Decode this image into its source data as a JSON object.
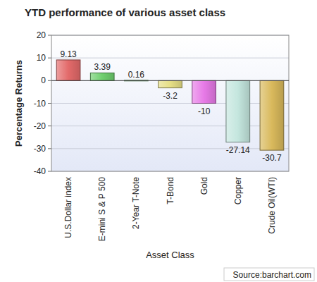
{
  "chart_data": {
    "type": "bar",
    "title": "YTD performance of various asset class",
    "x_label": "Asset Class",
    "y_label": "Percentage Returns",
    "source": "Source:barchart.com",
    "categories": [
      "U.S.Dollar index",
      "E-mini S & P 500",
      "2-Year T-Note",
      "T-Bond",
      "Gold",
      "Copper",
      "Crude Oil(WTI)"
    ],
    "values": [
      9.13,
      3.39,
      0.16,
      -3.2,
      -10,
      -27.14,
      -30.7
    ],
    "colors": [
      "#e36a6a",
      "#6fcf6f",
      "#8fd88f",
      "#e6df86",
      "#e77ae7",
      "#c4e6de",
      "#d9b95c"
    ],
    "ylim": [
      -40,
      20
    ],
    "yticks": [
      -40,
      -30,
      -20,
      -10,
      0,
      10,
      20
    ],
    "grid": true,
    "data_labels": true
  }
}
